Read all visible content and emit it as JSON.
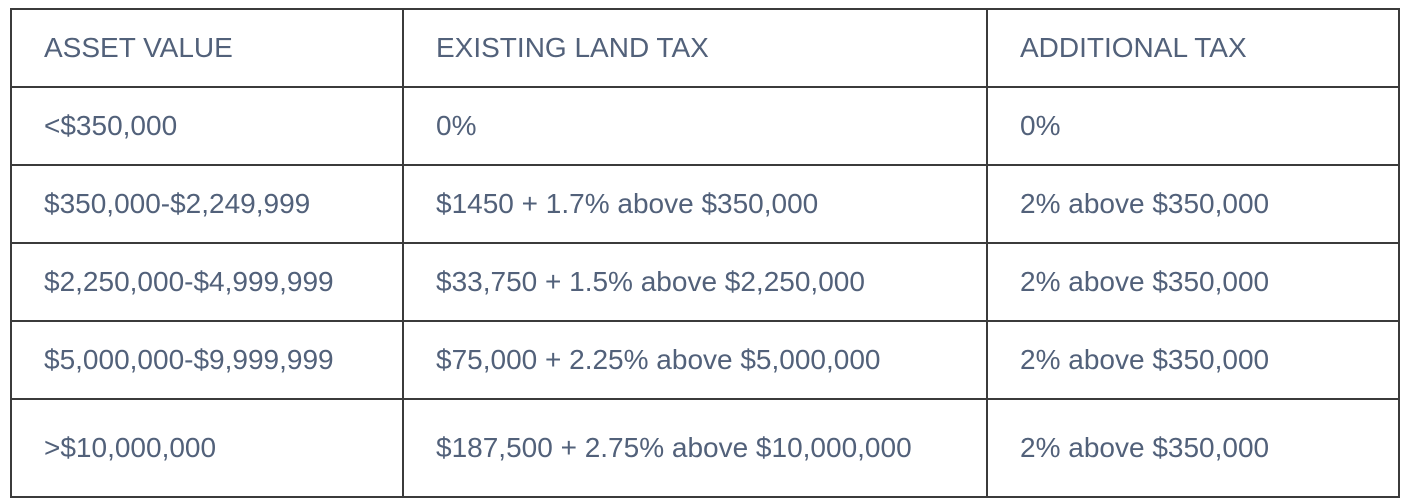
{
  "table": {
    "headers": [
      "ASSET VALUE",
      "EXISTING LAND TAX",
      "ADDITIONAL TAX"
    ],
    "rows": [
      [
        "<$350,000",
        "0%",
        "0%"
      ],
      [
        "$350,000-$2,249,999",
        "$1450 + 1.7% above $350,000",
        "2% above $350,000"
      ],
      [
        "$2,250,000-$4,999,999",
        "$33,750 + 1.5% above $2,250,000",
        "2% above $350,000"
      ],
      [
        "$5,000,000-$9,999,999",
        "$75,000 + 2.25% above $5,000,000",
        "2% above $350,000"
      ],
      [
        ">$10,000,000",
        "$187,500 + 2.75% above $10,000,000",
        "2% above $350,000"
      ]
    ]
  },
  "colors": {
    "text": "#52617a",
    "border": "#3b3b3b",
    "background": "#ffffff"
  }
}
